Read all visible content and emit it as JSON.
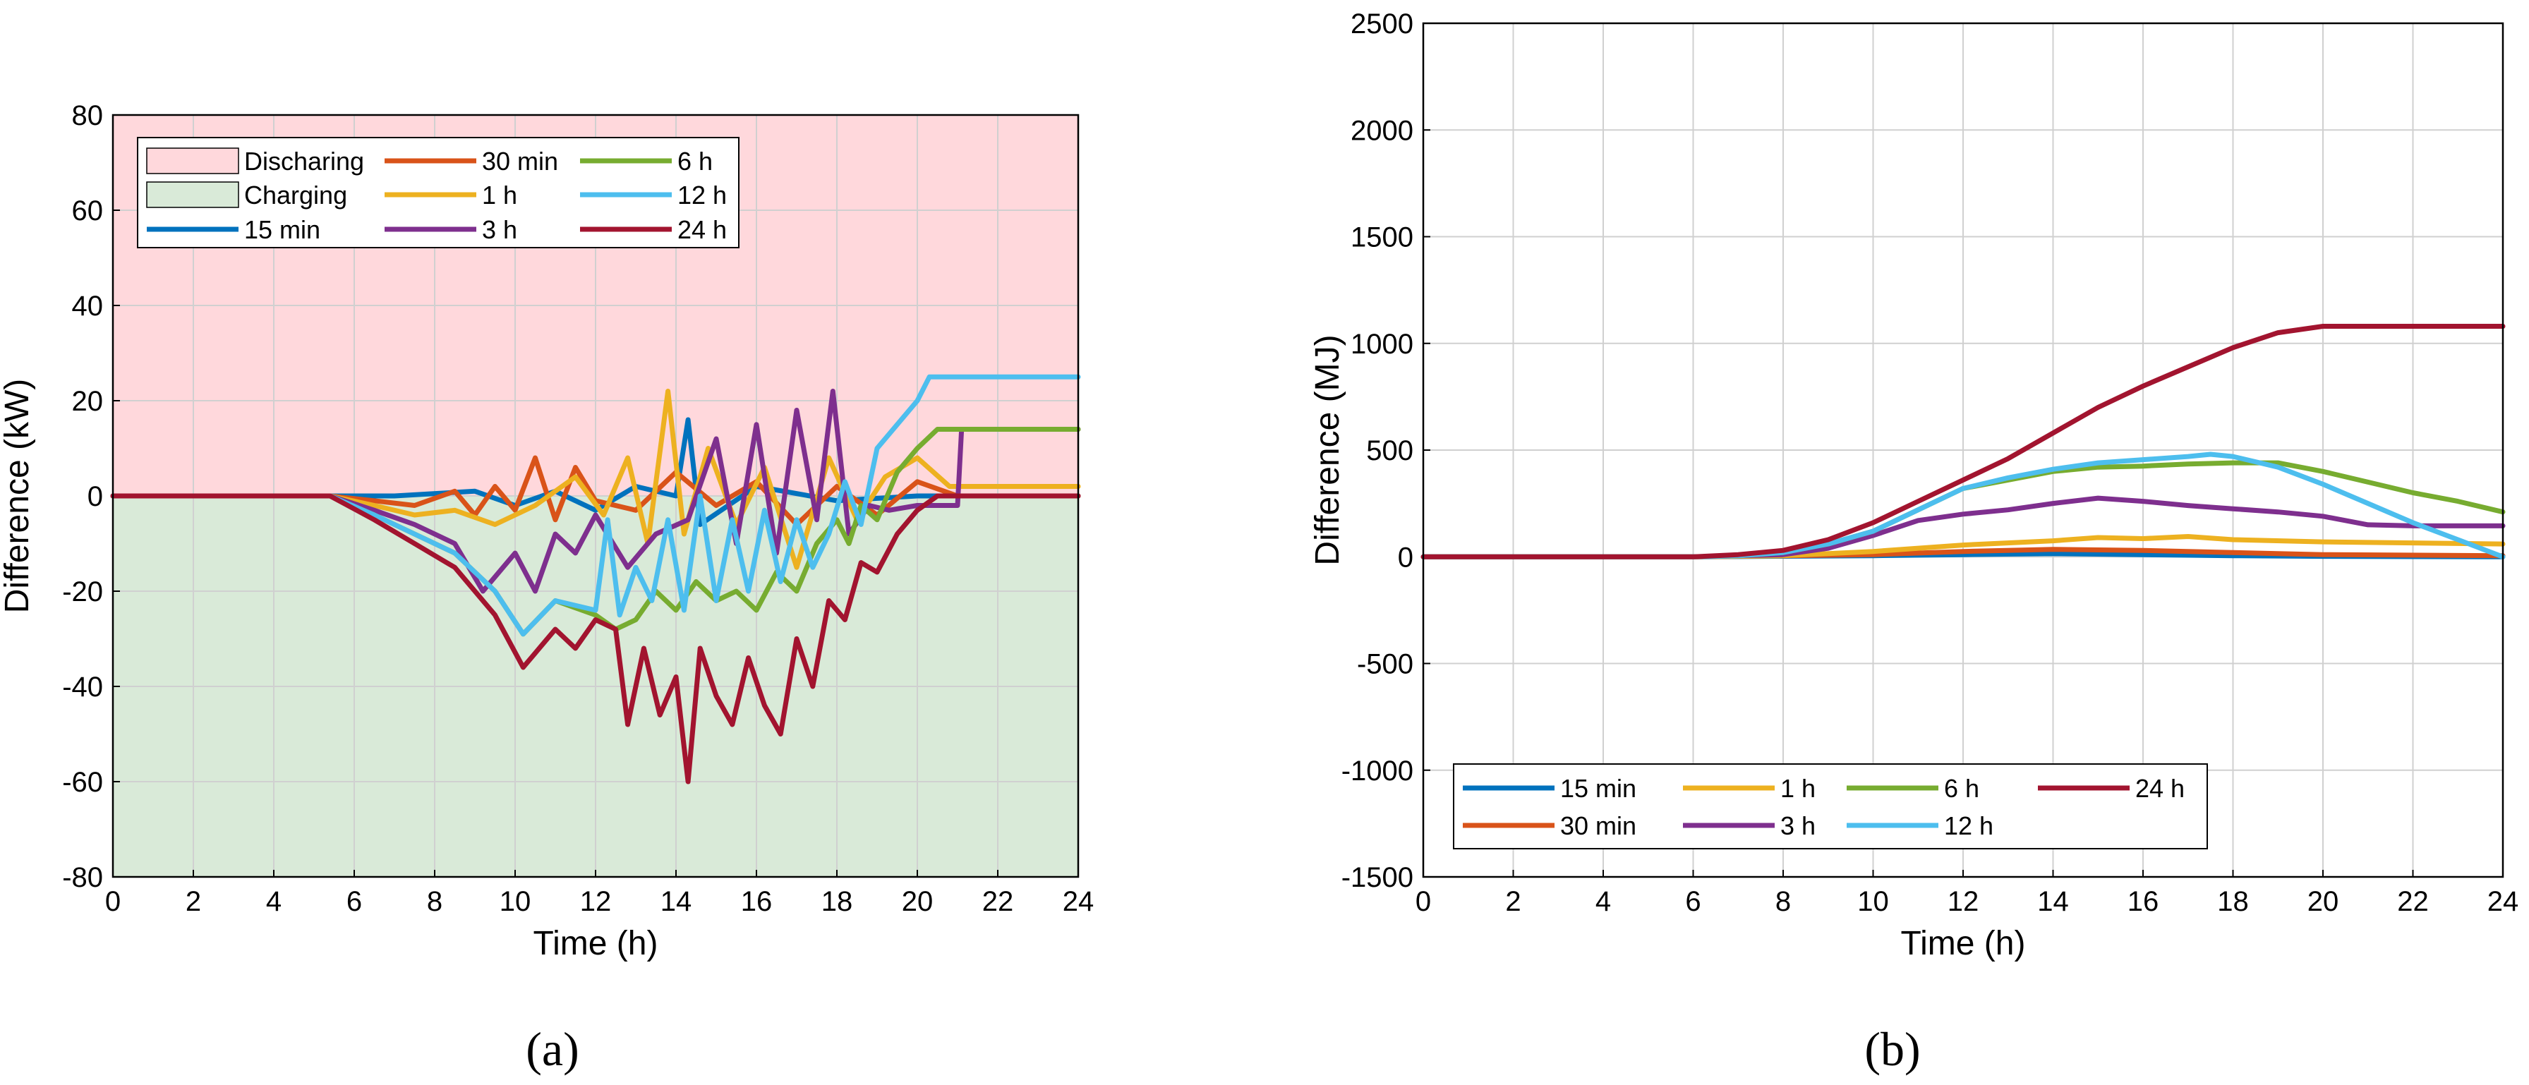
{
  "captions": {
    "a": "(a)",
    "b": "(b)"
  },
  "series_colors": {
    "15 min": "#0072BD",
    "30 min": "#D95319",
    "1 h": "#EDB120",
    "3 h": "#7E2F8E",
    "6 h": "#77AC30",
    "12 h": "#4DBEEE",
    "24 h": "#A2142F"
  },
  "region_colors": {
    "discharging": "#FFD8DC",
    "charging": "#D9EAD8"
  },
  "chart_data": [
    {
      "type": "line",
      "xlabel": "Time (h)",
      "ylabel": "Difference (kW)",
      "xlim": [
        0,
        24
      ],
      "ylim": [
        -80,
        80
      ],
      "xticks": [
        "0",
        "2",
        "4",
        "6",
        "8",
        "10",
        "12",
        "14",
        "16",
        "18",
        "20",
        "22",
        "24"
      ],
      "yticks": [
        "-80",
        "-60",
        "-40",
        "-20",
        "0",
        "20",
        "40",
        "60",
        "80"
      ],
      "grid": true,
      "legend_position": "top-left",
      "regions": [
        {
          "name": "Discharing",
          "from": 0,
          "to": 80
        },
        {
          "name": "Charging",
          "from": -80,
          "to": 0
        }
      ],
      "series": [
        {
          "name": "15 min",
          "x": [
            0,
            5.4,
            7,
            9,
            10,
            11,
            12,
            13,
            14,
            14.3,
            14.6,
            16,
            18,
            20,
            24
          ],
          "y": [
            0,
            0,
            0,
            1,
            -2,
            1,
            -3,
            2,
            0,
            16,
            -6,
            2,
            -1,
            0,
            0
          ]
        },
        {
          "name": "30 min",
          "x": [
            0,
            5.4,
            6.5,
            7.5,
            8.5,
            9,
            9.5,
            10,
            10.5,
            11,
            11.5,
            12,
            13,
            14,
            15,
            16,
            17,
            18,
            19,
            20,
            21,
            24
          ],
          "y": [
            0,
            0,
            -1,
            -2,
            1,
            -4,
            2,
            -3,
            8,
            -5,
            6,
            -1,
            -3,
            5,
            -2,
            3,
            -6,
            2,
            -4,
            3,
            0,
            0
          ]
        },
        {
          "name": "1 h",
          "x": [
            0,
            5.4,
            6.5,
            7.5,
            8.5,
            9.5,
            10.5,
            11.5,
            12.2,
            12.8,
            13.3,
            13.8,
            14.2,
            14.8,
            15.5,
            16.2,
            17,
            17.8,
            18.5,
            19.2,
            20,
            20.8,
            21,
            24
          ],
          "y": [
            0,
            0,
            -2,
            -4,
            -3,
            -6,
            -2,
            4,
            -4,
            8,
            -10,
            22,
            -8,
            10,
            -6,
            6,
            -15,
            8,
            -5,
            4,
            8,
            2,
            2,
            2
          ]
        },
        {
          "name": "3 h",
          "x": [
            0,
            5.4,
            6.5,
            7.5,
            8.5,
            9.2,
            10,
            10.5,
            11,
            11.5,
            12,
            12.8,
            13.5,
            14.3,
            15,
            15.5,
            16,
            16.5,
            17,
            17.5,
            17.9,
            18.3,
            18.8,
            19.3,
            20,
            21,
            21.1,
            24
          ],
          "y": [
            0,
            0,
            -3,
            -6,
            -10,
            -20,
            -12,
            -20,
            -8,
            -12,
            -4,
            -15,
            -8,
            -5,
            12,
            -10,
            15,
            -12,
            18,
            -5,
            22,
            -8,
            -2,
            -3,
            -2,
            -2,
            14,
            14
          ]
        },
        {
          "name": "6 h",
          "x": [
            0,
            5.4,
            6.5,
            7.5,
            8.5,
            9.5,
            10.2,
            11,
            12,
            12.5,
            13,
            13.5,
            14,
            14.5,
            15,
            15.5,
            16,
            16.5,
            17,
            17.5,
            18,
            18.3,
            18.6,
            19,
            19.5,
            20,
            20.5,
            24
          ],
          "y": [
            0,
            0,
            -4,
            -8,
            -12,
            -20,
            -29,
            -22,
            -25,
            -28,
            -26,
            -20,
            -24,
            -18,
            -22,
            -20,
            -24,
            -16,
            -20,
            -10,
            -5,
            -10,
            -2,
            -5,
            5,
            10,
            14,
            14
          ]
        },
        {
          "name": "12 h",
          "x": [
            0,
            5.4,
            6.5,
            7.5,
            8.5,
            9.5,
            10.2,
            11,
            12,
            12.3,
            12.6,
            13,
            13.4,
            13.8,
            14.2,
            14.6,
            15,
            15.4,
            15.8,
            16.2,
            16.6,
            17,
            17.4,
            17.8,
            18.2,
            18.6,
            19,
            19.5,
            20,
            20.3,
            24
          ],
          "y": [
            0,
            0,
            -4,
            -8,
            -12,
            -20,
            -29,
            -22,
            -24,
            -5,
            -25,
            -15,
            -22,
            -5,
            -24,
            0,
            -22,
            -5,
            -20,
            -3,
            -18,
            -5,
            -15,
            -8,
            3,
            -6,
            10,
            15,
            20,
            25,
            25
          ]
        },
        {
          "name": "24 h",
          "x": [
            0,
            5.4,
            6.5,
            7.5,
            8.5,
            9.5,
            10.2,
            11,
            11.5,
            12,
            12.5,
            12.8,
            13.2,
            13.6,
            14,
            14.3,
            14.6,
            15,
            15.4,
            15.8,
            16.2,
            16.6,
            17,
            17.4,
            17.8,
            18.2,
            18.6,
            19,
            19.5,
            20,
            20.5,
            24
          ],
          "y": [
            0,
            0,
            -5,
            -10,
            -15,
            -25,
            -36,
            -28,
            -32,
            -26,
            -28,
            -48,
            -32,
            -46,
            -38,
            -60,
            -32,
            -42,
            -48,
            -34,
            -44,
            -50,
            -30,
            -40,
            -22,
            -26,
            -14,
            -16,
            -8,
            -3,
            0,
            0
          ]
        }
      ]
    },
    {
      "type": "line",
      "xlabel": "Time (h)",
      "ylabel": "Difference (MJ)",
      "xlim": [
        0,
        24
      ],
      "ylim": [
        -1500,
        2500
      ],
      "xticks": [
        "0",
        "2",
        "4",
        "6",
        "8",
        "10",
        "12",
        "14",
        "16",
        "18",
        "20",
        "22",
        "24"
      ],
      "yticks": [
        "-1500",
        "-1000",
        "-500",
        "0",
        "500",
        "1000",
        "1500",
        "2000",
        "2500"
      ],
      "grid": true,
      "legend_position": "bottom-left",
      "series": [
        {
          "name": "15 min",
          "x": [
            0,
            6,
            10,
            12,
            14,
            16,
            18,
            20,
            24
          ],
          "y": [
            0,
            0,
            5,
            10,
            15,
            10,
            5,
            2,
            0
          ]
        },
        {
          "name": "30 min",
          "x": [
            0,
            6,
            10,
            12,
            14,
            16,
            18,
            20,
            24
          ],
          "y": [
            0,
            0,
            10,
            25,
            35,
            30,
            20,
            10,
            5
          ]
        },
        {
          "name": "1 h",
          "x": [
            0,
            6,
            8,
            10,
            12,
            14,
            15,
            16,
            17,
            18,
            20,
            24
          ],
          "y": [
            0,
            0,
            5,
            25,
            55,
            75,
            90,
            85,
            95,
            80,
            70,
            60
          ]
        },
        {
          "name": "3 h",
          "x": [
            0,
            6,
            8,
            9,
            10,
            11,
            12,
            13,
            14,
            15,
            16,
            17,
            18,
            19,
            20,
            21,
            22,
            24
          ],
          "y": [
            0,
            0,
            10,
            40,
            100,
            170,
            200,
            220,
            250,
            275,
            260,
            240,
            225,
            210,
            190,
            150,
            145,
            145
          ]
        },
        {
          "name": "6 h",
          "x": [
            0,
            6,
            7,
            8,
            9,
            10,
            11,
            12,
            13,
            14,
            15,
            16,
            17,
            18,
            19,
            20,
            21,
            22,
            23,
            24
          ],
          "y": [
            0,
            0,
            5,
            20,
            60,
            120,
            220,
            320,
            360,
            400,
            420,
            425,
            435,
            440,
            440,
            400,
            350,
            300,
            260,
            210
          ]
        },
        {
          "name": "12 h",
          "x": [
            0,
            6,
            7,
            8,
            9,
            10,
            11,
            12,
            13,
            14,
            15,
            16,
            17,
            17.5,
            18,
            19,
            20,
            21,
            22,
            23,
            24
          ],
          "y": [
            0,
            0,
            5,
            20,
            60,
            120,
            220,
            320,
            370,
            410,
            440,
            455,
            470,
            480,
            470,
            420,
            340,
            250,
            160,
            80,
            0
          ]
        },
        {
          "name": "24 h",
          "x": [
            0,
            6,
            7,
            8,
            9,
            10,
            11,
            12,
            13,
            14,
            15,
            16,
            17,
            18,
            19,
            20,
            21,
            22,
            23,
            24
          ],
          "y": [
            0,
            0,
            10,
            30,
            80,
            160,
            260,
            360,
            460,
            580,
            700,
            800,
            890,
            980,
            1050,
            1080,
            1080,
            1080,
            1080,
            1080
          ]
        }
      ]
    }
  ]
}
